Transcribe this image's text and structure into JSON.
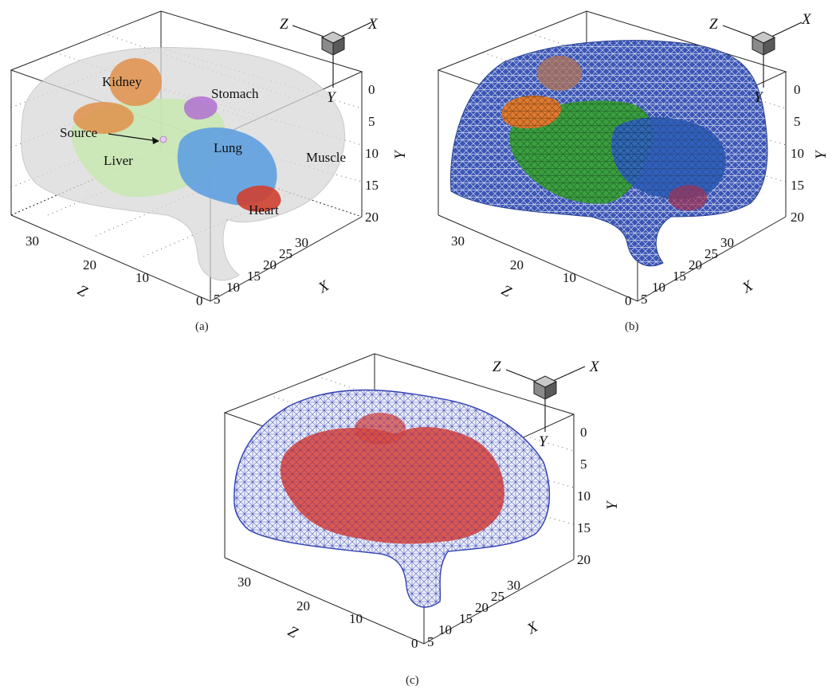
{
  "panels": [
    {
      "caption": "(a)",
      "triad": {
        "x": "X",
        "y": "Y",
        "z": "Z"
      },
      "axes": {
        "x": {
          "title": "X",
          "ticks": [
            "5",
            "10",
            "15",
            "20",
            "25",
            "30"
          ]
        },
        "y": {
          "title": "Y",
          "ticks": [
            "0",
            "5",
            "10",
            "15",
            "20"
          ]
        },
        "z": {
          "title": "Z",
          "ticks": [
            "30",
            "20",
            "10",
            "0"
          ]
        }
      },
      "labels": {
        "kidney": "Kidney",
        "stomach": "Stomach",
        "source": "Source",
        "lung": "Lung",
        "liver": "Liver",
        "muscle": "Muscle",
        "heart": "Heart"
      },
      "colors": {
        "muscle": "#d9d9d9",
        "kidney": "#e0904a",
        "stomach": "#b070d0",
        "liver": "#c8e8b0",
        "lung": "#5fa0e0",
        "heart": "#d04030"
      }
    },
    {
      "caption": "(b)",
      "triad": {
        "x": "X",
        "y": "Y",
        "z": "Z"
      },
      "axes": {
        "x": {
          "title": "X",
          "ticks": [
            "5",
            "10",
            "15",
            "20",
            "25",
            "30"
          ]
        },
        "y": {
          "title": "Y",
          "ticks": [
            "0",
            "5",
            "10",
            "15",
            "20"
          ]
        },
        "z": {
          "title": "Z",
          "ticks": [
            "30",
            "20",
            "10",
            "0"
          ]
        }
      },
      "colors": {
        "mesh": "#3a55b5",
        "kidney": "#e07a30",
        "liver": "#3aa040",
        "lung": "#2f62c0",
        "heart": "#a03050"
      }
    },
    {
      "caption": "(c)",
      "triad": {
        "x": "X",
        "y": "Y",
        "z": "Z"
      },
      "axes": {
        "x": {
          "title": "X",
          "ticks": [
            "5",
            "10",
            "15",
            "20",
            "25",
            "30"
          ]
        },
        "y": {
          "title": "Y",
          "ticks": [
            "0",
            "5",
            "10",
            "15",
            "20"
          ]
        },
        "z": {
          "title": "Z",
          "ticks": [
            "30",
            "20",
            "10",
            "0"
          ]
        }
      },
      "colors": {
        "wire": "#3040b0",
        "organs": "#d84a40"
      }
    }
  ]
}
